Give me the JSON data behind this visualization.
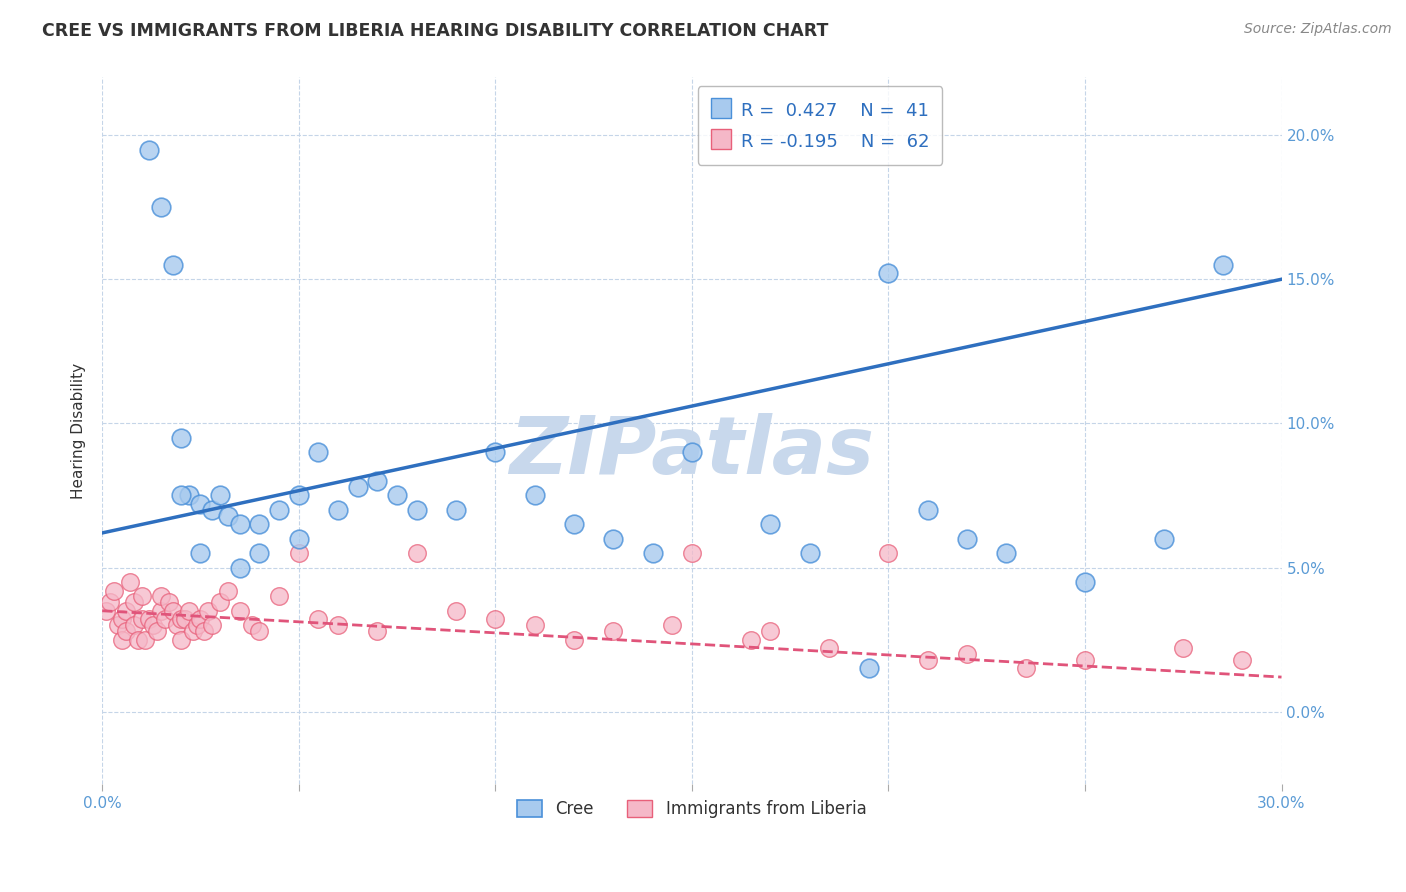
{
  "title": "CREE VS IMMIGRANTS FROM LIBERIA HEARING DISABILITY CORRELATION CHART",
  "source_text": "Source: ZipAtlas.com",
  "ylabel": "Hearing Disability",
  "xlim": [
    0,
    30
  ],
  "ylim": [
    -2.5,
    22
  ],
  "ytick_vals": [
    0.0,
    5.0,
    10.0,
    15.0,
    20.0
  ],
  "ytick_labels": [
    "0.0%",
    "5.0%",
    "10.0%",
    "15.0%",
    "20.0%"
  ],
  "xtick_vals": [
    0.0,
    5.0,
    10.0,
    15.0,
    20.0,
    25.0,
    30.0
  ],
  "xlabel_show": [
    "0.0%",
    "",
    "",
    "",
    "",
    "",
    "30.0%"
  ],
  "cree_R": 0.427,
  "cree_N": 41,
  "liberia_R": -0.195,
  "liberia_N": 62,
  "cree_color": "#A8CAEE",
  "liberia_color": "#F5B8C8",
  "cree_edge_color": "#4A90D9",
  "liberia_edge_color": "#E8607A",
  "cree_line_color": "#2E6FBF",
  "liberia_line_color": "#E0547A",
  "watermark_color": "#C8D8EC",
  "background_color": "#FFFFFF",
  "title_color": "#333333",
  "axis_tick_color": "#5B9BD5",
  "grid_color": "#C5D5E8",
  "legend_r_color": "#2E6FBF",
  "legend_box_border": "#AAAAAA",
  "cree_line_start_y": 6.2,
  "cree_line_end_y": 15.0,
  "liberia_line_start_y": 3.5,
  "liberia_line_end_y": 1.2,
  "cree_x": [
    1.5,
    1.8,
    2.0,
    2.2,
    2.5,
    2.8,
    3.2,
    3.5,
    4.0,
    4.5,
    5.0,
    5.5,
    6.0,
    6.5,
    7.0,
    7.5,
    8.0,
    9.0,
    10.0,
    11.0,
    12.0,
    13.0,
    14.0,
    15.0,
    17.0,
    18.0,
    19.5,
    20.0,
    21.0,
    22.0,
    23.0,
    25.0,
    27.0,
    28.5,
    1.2,
    2.0,
    2.5,
    3.0,
    3.5,
    4.0,
    5.0
  ],
  "cree_y": [
    17.5,
    15.5,
    9.5,
    7.5,
    7.2,
    7.0,
    6.8,
    6.5,
    6.5,
    7.0,
    7.5,
    9.0,
    7.0,
    7.8,
    8.0,
    7.5,
    7.0,
    7.0,
    9.0,
    7.5,
    6.5,
    6.0,
    5.5,
    9.0,
    6.5,
    5.5,
    1.5,
    15.2,
    7.0,
    6.0,
    5.5,
    4.5,
    6.0,
    15.5,
    19.5,
    7.5,
    5.5,
    7.5,
    5.0,
    5.5,
    6.0
  ],
  "liberia_x": [
    0.1,
    0.2,
    0.3,
    0.4,
    0.5,
    0.5,
    0.6,
    0.6,
    0.7,
    0.8,
    0.8,
    0.9,
    1.0,
    1.0,
    1.1,
    1.2,
    1.3,
    1.4,
    1.5,
    1.5,
    1.6,
    1.7,
    1.8,
    1.9,
    2.0,
    2.0,
    2.1,
    2.2,
    2.3,
    2.4,
    2.5,
    2.6,
    2.7,
    2.8,
    3.0,
    3.2,
    3.5,
    3.8,
    4.0,
    4.5,
    5.0,
    5.5,
    6.0,
    7.0,
    8.0,
    9.0,
    10.0,
    11.0,
    12.0,
    13.0,
    14.5,
    15.0,
    16.5,
    17.0,
    18.5,
    20.0,
    21.0,
    22.0,
    23.5,
    25.0,
    27.5,
    29.0
  ],
  "liberia_y": [
    3.5,
    3.8,
    4.2,
    3.0,
    3.2,
    2.5,
    2.8,
    3.5,
    4.5,
    3.8,
    3.0,
    2.5,
    3.2,
    4.0,
    2.5,
    3.2,
    3.0,
    2.8,
    3.5,
    4.0,
    3.2,
    3.8,
    3.5,
    3.0,
    3.2,
    2.5,
    3.2,
    3.5,
    2.8,
    3.0,
    3.2,
    2.8,
    3.5,
    3.0,
    3.8,
    4.2,
    3.5,
    3.0,
    2.8,
    4.0,
    5.5,
    3.2,
    3.0,
    2.8,
    5.5,
    3.5,
    3.2,
    3.0,
    2.5,
    2.8,
    3.0,
    5.5,
    2.5,
    2.8,
    2.2,
    5.5,
    1.8,
    2.0,
    1.5,
    1.8,
    2.2,
    1.8
  ]
}
